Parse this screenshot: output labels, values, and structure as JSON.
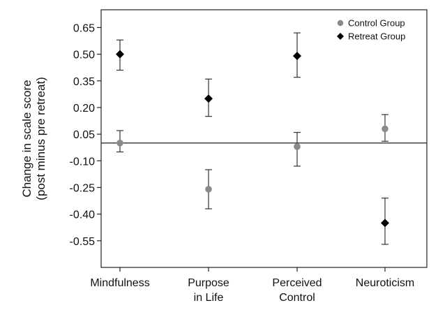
{
  "chart_data": {
    "type": "scatter",
    "ylabel_line1": "Change in scale score",
    "ylabel_line2": "(post minus pre retreat)",
    "ylim": [
      -0.7,
      0.75
    ],
    "yticks": [
      "0.65",
      "0.50",
      "0.35",
      "0.20",
      "0.05",
      "-0.10",
      "-0.25",
      "-0.40",
      "-0.55"
    ],
    "reference_line_y": 0.0,
    "categories": [
      {
        "line1": "Mindfulness",
        "line2": ""
      },
      {
        "line1": "Purpose",
        "line2": "in Life"
      },
      {
        "line1": "Perceived",
        "line2": "Control"
      },
      {
        "line1": "Neuroticism",
        "line2": ""
      }
    ],
    "legend_position": "top-right",
    "series": [
      {
        "name": "Control Group",
        "marker": "circle",
        "color": "#8a8a8a",
        "values": [
          0.0,
          -0.26,
          -0.02,
          0.08
        ],
        "ci_low": [
          -0.05,
          -0.37,
          -0.13,
          0.01
        ],
        "ci_high": [
          0.07,
          -0.15,
          0.06,
          0.16
        ]
      },
      {
        "name": "Retreat Group",
        "marker": "diamond",
        "color": "#000000",
        "values": [
          0.5,
          0.25,
          0.49,
          -0.45
        ],
        "ci_low": [
          0.41,
          0.15,
          0.37,
          -0.57
        ],
        "ci_high": [
          0.58,
          0.36,
          0.62,
          -0.31
        ]
      }
    ]
  }
}
